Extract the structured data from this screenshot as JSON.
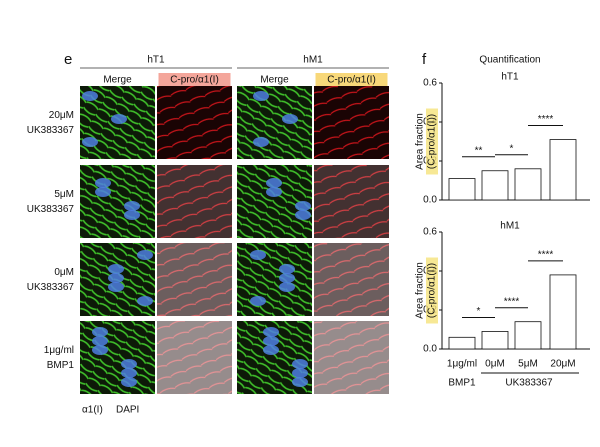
{
  "panel_e": {
    "label": "e",
    "groups": [
      "hT1",
      "hM1"
    ],
    "columns": [
      "Merge",
      "C-pro/α1(I)",
      "Merge",
      "C-pro/α1(I)"
    ],
    "rows": [
      [
        "20μM",
        "UK383367"
      ],
      [
        "5μM",
        "UK383367"
      ],
      [
        "0μM",
        "UK383367"
      ],
      [
        "1μg/ml",
        "BMP1"
      ]
    ],
    "legend": [
      "α1(I)",
      "DAPI"
    ]
  },
  "panel_f": {
    "label": "f",
    "title": "Quantification",
    "y_label": [
      "Area fraction",
      "(C-pro/α1(I))"
    ],
    "categories": [
      "1μg/ml",
      "0μM",
      "5μM",
      "20μM"
    ],
    "groups": [
      "BMP1",
      "UK383367"
    ],
    "charts": [
      {
        "type": "bar",
        "title": "hT1",
        "values": [
          0.11,
          0.15,
          0.16,
          0.31
        ],
        "ylim": [
          0,
          0.6
        ],
        "yticks": [
          {
            "value": 0,
            "label": "0.0"
          },
          {
            "value": 0.2,
            "label": "0.2"
          },
          {
            "value": 0.4,
            "label": "0.4"
          },
          {
            "value": 0.6,
            "label": "0.6"
          }
        ],
        "significance": [
          "**",
          "*",
          "****"
        ]
      },
      {
        "type": "bar",
        "title": "hM1",
        "values": [
          0.06,
          0.09,
          0.14,
          0.38
        ],
        "ylim": [
          0,
          0.6
        ],
        "yticks": [
          {
            "value": 0,
            "label": "0.0"
          },
          {
            "value": 0.2,
            "label": "0.2"
          },
          {
            "value": 0.4,
            "label": "0.4"
          },
          {
            "value": 0.6,
            "label": "0.6"
          }
        ],
        "significance": [
          "*",
          "****",
          "****"
        ]
      }
    ]
  }
}
